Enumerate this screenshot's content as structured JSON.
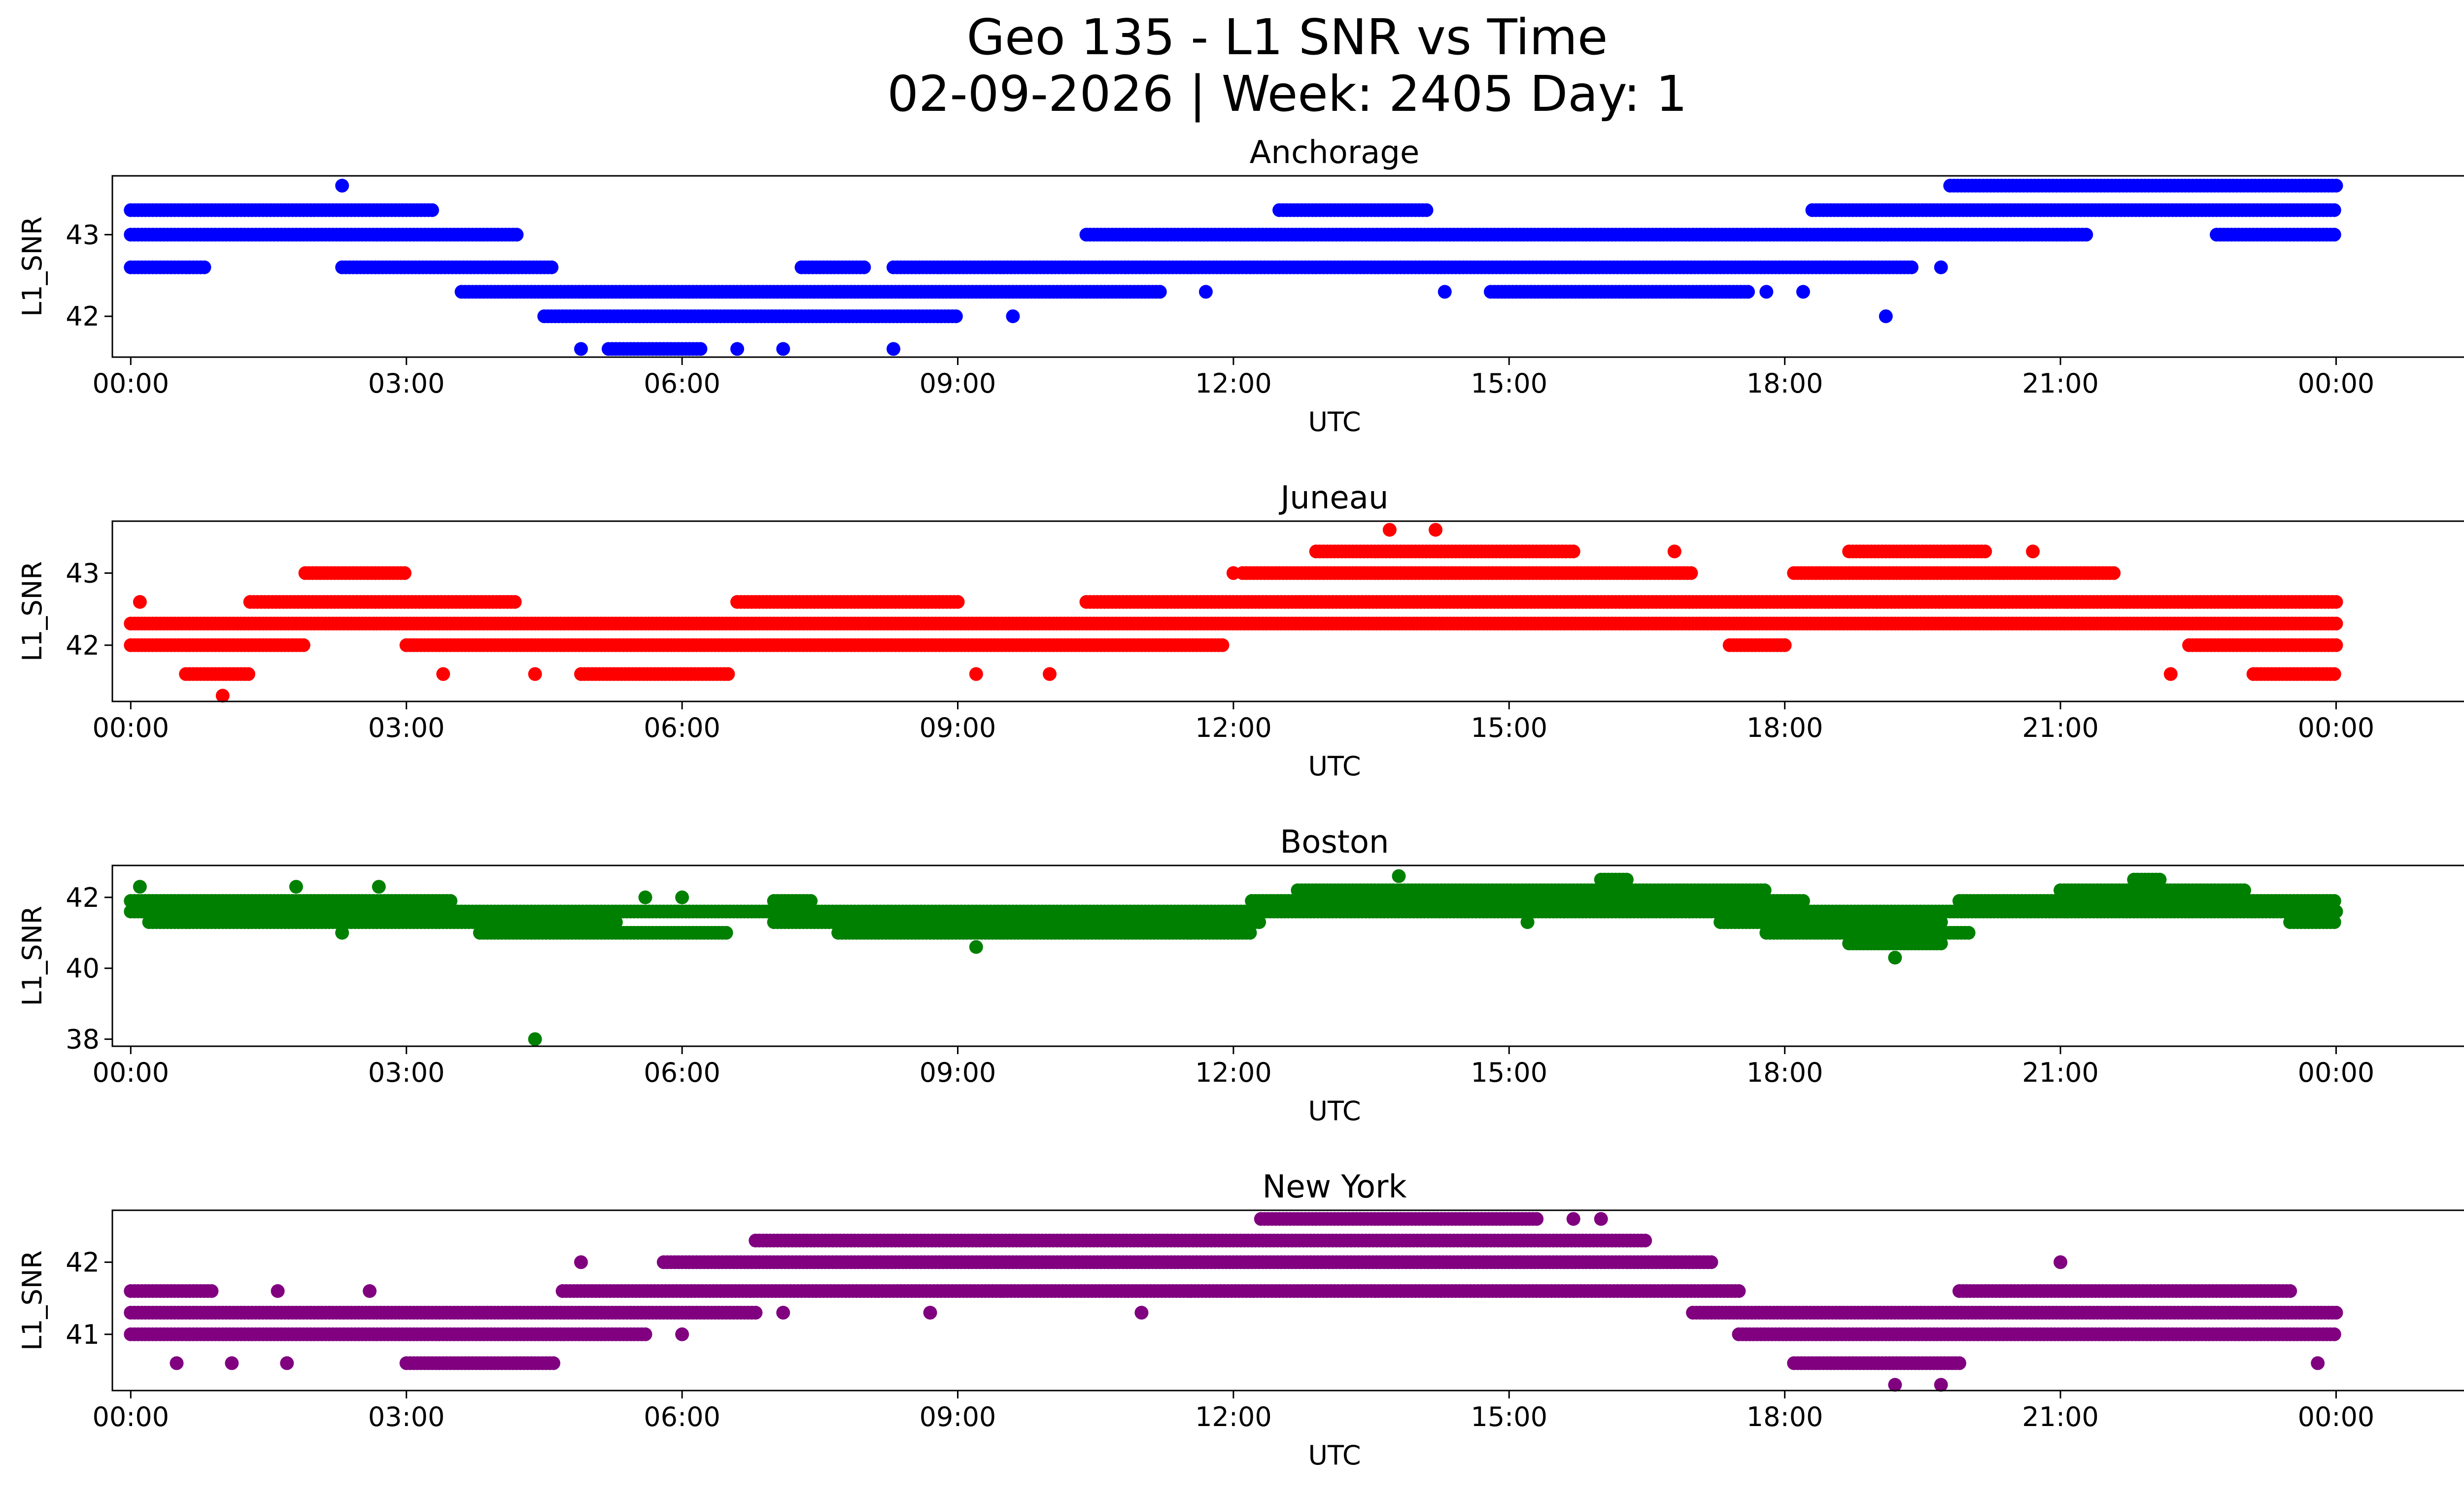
{
  "title_line1": "Geo 135 - L1 SNR vs Time",
  "title_line2": "02-09-2026 | Week: 2405 Day: 1",
  "chart_data": [
    {
      "type": "scatter",
      "title": "Anchorage",
      "xlabel": "UTC",
      "ylabel": "L1_SNR",
      "color": "#0000ff",
      "xlim": [
        -0.2,
        26.4
      ],
      "ylim": [
        41.5,
        43.72
      ],
      "xticks": [
        0,
        3,
        6,
        9,
        12,
        15,
        18,
        21,
        24
      ],
      "xtick_labels": [
        "00:00",
        "03:00",
        "06:00",
        "09:00",
        "12:00",
        "15:00",
        "18:00",
        "21:00",
        "00:00"
      ],
      "yticks": [
        42,
        43
      ],
      "ytick_labels": [
        "42",
        "43"
      ],
      "bands": [
        {
          "y": 43.3,
          "segments": [
            [
              0.0,
              3.3
            ],
            [
              12.5,
              14.1
            ],
            [
              18.3,
              24.0
            ]
          ]
        },
        {
          "y": 43.0,
          "segments": [
            [
              0.0,
              4.2
            ],
            [
              10.4,
              21.3
            ],
            [
              22.7,
              24.0
            ]
          ]
        },
        {
          "y": 42.6,
          "segments": [
            [
              0.0,
              0.8
            ],
            [
              2.3,
              4.6
            ],
            [
              7.3,
              8.0
            ],
            [
              8.3,
              19.4
            ]
          ]
        },
        {
          "y": 42.3,
          "segments": [
            [
              3.6,
              11.2
            ],
            [
              14.8,
              17.6
            ]
          ]
        },
        {
          "y": 42.0,
          "segments": [
            [
              4.5,
              9.0
            ]
          ]
        },
        {
          "y": 41.6,
          "segments": [
            [
              5.2,
              6.2
            ]
          ]
        },
        {
          "y": 43.6,
          "segments": [
            [
              19.8,
              24.0
            ]
          ]
        }
      ],
      "points": [
        {
          "x": 2.3,
          "y": 43.6
        },
        {
          "x": 11.7,
          "y": 42.3
        },
        {
          "x": 19.1,
          "y": 42.0
        },
        {
          "x": 8.3,
          "y": 41.6
        },
        {
          "x": 7.1,
          "y": 41.6
        },
        {
          "x": 4.9,
          "y": 41.6
        },
        {
          "x": 6.6,
          "y": 41.6
        },
        {
          "x": 9.6,
          "y": 42.0
        },
        {
          "x": 19.7,
          "y": 42.6
        },
        {
          "x": 14.3,
          "y": 42.3
        },
        {
          "x": 17.8,
          "y": 42.3
        },
        {
          "x": 18.2,
          "y": 42.3
        }
      ]
    },
    {
      "type": "scatter",
      "title": "Juneau",
      "xlabel": "UTC",
      "ylabel": "L1_SNR",
      "color": "#ff0000",
      "xlim": [
        -0.2,
        26.4
      ],
      "ylim": [
        41.22,
        43.72
      ],
      "xticks": [
        0,
        3,
        6,
        9,
        12,
        15,
        18,
        21,
        24
      ],
      "xtick_labels": [
        "00:00",
        "03:00",
        "06:00",
        "09:00",
        "12:00",
        "15:00",
        "18:00",
        "21:00",
        "00:00"
      ],
      "yticks": [
        42,
        43
      ],
      "ytick_labels": [
        "42",
        "43"
      ],
      "bands": [
        {
          "y": 42.3,
          "segments": [
            [
              0.0,
              24.0
            ]
          ]
        },
        {
          "y": 42.0,
          "segments": [
            [
              0.0,
              1.9
            ],
            [
              3.0,
              11.9
            ],
            [
              17.4,
              18.0
            ],
            [
              22.4,
              24.0
            ]
          ]
        },
        {
          "y": 42.6,
          "segments": [
            [
              1.3,
              4.2
            ],
            [
              6.6,
              9.0
            ],
            [
              10.4,
              24.0
            ]
          ]
        },
        {
          "y": 43.0,
          "segments": [
            [
              1.9,
              3.0
            ],
            [
              12.1,
              17.0
            ],
            [
              18.1,
              21.6
            ]
          ]
        },
        {
          "y": 43.3,
          "segments": [
            [
              12.9,
              15.7
            ],
            [
              18.7,
              20.2
            ]
          ]
        },
        {
          "y": 41.6,
          "segments": [
            [
              0.6,
              1.3
            ],
            [
              4.9,
              6.5
            ],
            [
              23.1,
              24.0
            ]
          ]
        }
      ],
      "points": [
        {
          "x": 1.0,
          "y": 41.3
        },
        {
          "x": 13.7,
          "y": 43.6
        },
        {
          "x": 14.2,
          "y": 43.6
        },
        {
          "x": 10.0,
          "y": 41.6
        },
        {
          "x": 9.2,
          "y": 41.6
        },
        {
          "x": 22.2,
          "y": 41.6
        },
        {
          "x": 3.4,
          "y": 41.6
        },
        {
          "x": 4.4,
          "y": 41.6
        },
        {
          "x": 12.0,
          "y": 43.0
        },
        {
          "x": 0.1,
          "y": 42.6
        },
        {
          "x": 16.8,
          "y": 43.3
        },
        {
          "x": 20.7,
          "y": 43.3
        }
      ]
    },
    {
      "type": "scatter",
      "title": "Boston",
      "xlabel": "UTC",
      "ylabel": "L1_SNR",
      "color": "#008000",
      "xlim": [
        -0.2,
        26.4
      ],
      "ylim": [
        37.8,
        42.9
      ],
      "xticks": [
        0,
        3,
        6,
        9,
        12,
        15,
        18,
        21,
        24
      ],
      "xtick_labels": [
        "00:00",
        "03:00",
        "06:00",
        "09:00",
        "12:00",
        "15:00",
        "18:00",
        "21:00",
        "00:00"
      ],
      "yticks": [
        38,
        40,
        42
      ],
      "ytick_labels": [
        "38",
        "40",
        "42"
      ],
      "bands": [
        {
          "y": 41.6,
          "segments": [
            [
              0.0,
              24.0
            ]
          ]
        },
        {
          "y": 41.3,
          "segments": [
            [
              0.2,
              5.3
            ],
            [
              7.0,
              12.3
            ],
            [
              17.3,
              19.7
            ],
            [
              23.5,
              24.0
            ]
          ]
        },
        {
          "y": 41.9,
          "segments": [
            [
              0.0,
              3.5
            ],
            [
              7.0,
              7.4
            ],
            [
              12.2,
              18.2
            ],
            [
              19.9,
              24.0
            ]
          ]
        },
        {
          "y": 42.2,
          "segments": [
            [
              12.7,
              17.8
            ],
            [
              21.0,
              23.0
            ]
          ]
        },
        {
          "y": 41.0,
          "segments": [
            [
              3.8,
              6.5
            ],
            [
              7.7,
              12.2
            ],
            [
              17.8,
              20.0
            ]
          ]
        },
        {
          "y": 40.7,
          "segments": [
            [
              18.7,
              19.7
            ]
          ]
        },
        {
          "y": 42.5,
          "segments": [
            [
              16.0,
              16.3
            ],
            [
              21.8,
              22.1
            ]
          ]
        }
      ],
      "points": [
        {
          "x": 4.4,
          "y": 38.0
        },
        {
          "x": 9.2,
          "y": 40.6
        },
        {
          "x": 19.2,
          "y": 40.3
        },
        {
          "x": 13.8,
          "y": 42.6
        },
        {
          "x": 15.2,
          "y": 41.3
        },
        {
          "x": 0.1,
          "y": 42.3
        },
        {
          "x": 1.8,
          "y": 42.3
        },
        {
          "x": 2.3,
          "y": 41.0
        },
        {
          "x": 5.6,
          "y": 42.0
        },
        {
          "x": 6.0,
          "y": 42.0
        },
        {
          "x": 2.7,
          "y": 42.3
        }
      ]
    },
    {
      "type": "scatter",
      "title": "New York",
      "xlabel": "UTC",
      "ylabel": "L1_SNR",
      "color": "#800080",
      "xlim": [
        -0.2,
        26.4
      ],
      "ylim": [
        40.22,
        42.72
      ],
      "xticks": [
        0,
        3,
        6,
        9,
        12,
        15,
        18,
        21,
        24
      ],
      "xtick_labels": [
        "00:00",
        "03:00",
        "06:00",
        "09:00",
        "12:00",
        "15:00",
        "18:00",
        "21:00",
        "00:00"
      ],
      "yticks": [
        41,
        42
      ],
      "ytick_labels": [
        "41",
        "42"
      ],
      "bands": [
        {
          "y": 41.3,
          "segments": [
            [
              0.0,
              6.8
            ],
            [
              17.0,
              24.0
            ]
          ]
        },
        {
          "y": 41.0,
          "segments": [
            [
              0.0,
              5.6
            ],
            [
              17.5,
              24.0
            ]
          ]
        },
        {
          "y": 41.6,
          "segments": [
            [
              0.0,
              0.9
            ],
            [
              4.7,
              17.5
            ],
            [
              19.9,
              23.5
            ]
          ]
        },
        {
          "y": 42.0,
          "segments": [
            [
              5.8,
              17.2
            ]
          ]
        },
        {
          "y": 42.3,
          "segments": [
            [
              6.8,
              16.5
            ]
          ]
        },
        {
          "y": 42.6,
          "segments": [
            [
              12.3,
              15.3
            ]
          ]
        },
        {
          "y": 40.6,
          "segments": [
            [
              3.0,
              4.6
            ],
            [
              18.1,
              19.9
            ]
          ]
        }
      ],
      "points": [
        {
          "x": 19.2,
          "y": 40.3
        },
        {
          "x": 19.7,
          "y": 40.3
        },
        {
          "x": 21.0,
          "y": 42.0
        },
        {
          "x": 4.9,
          "y": 42.0
        },
        {
          "x": 11.0,
          "y": 41.3
        },
        {
          "x": 6.0,
          "y": 41.0
        },
        {
          "x": 1.7,
          "y": 40.6
        },
        {
          "x": 0.5,
          "y": 40.6
        },
        {
          "x": 1.1,
          "y": 40.6
        },
        {
          "x": 2.6,
          "y": 41.6
        },
        {
          "x": 23.8,
          "y": 40.6
        },
        {
          "x": 15.7,
          "y": 41.6
        },
        {
          "x": 7.1,
          "y": 41.3
        },
        {
          "x": 8.7,
          "y": 41.3
        },
        {
          "x": 1.6,
          "y": 41.6
        },
        {
          "x": 15.7,
          "y": 42.6
        },
        {
          "x": 16.0,
          "y": 42.6
        }
      ]
    }
  ]
}
